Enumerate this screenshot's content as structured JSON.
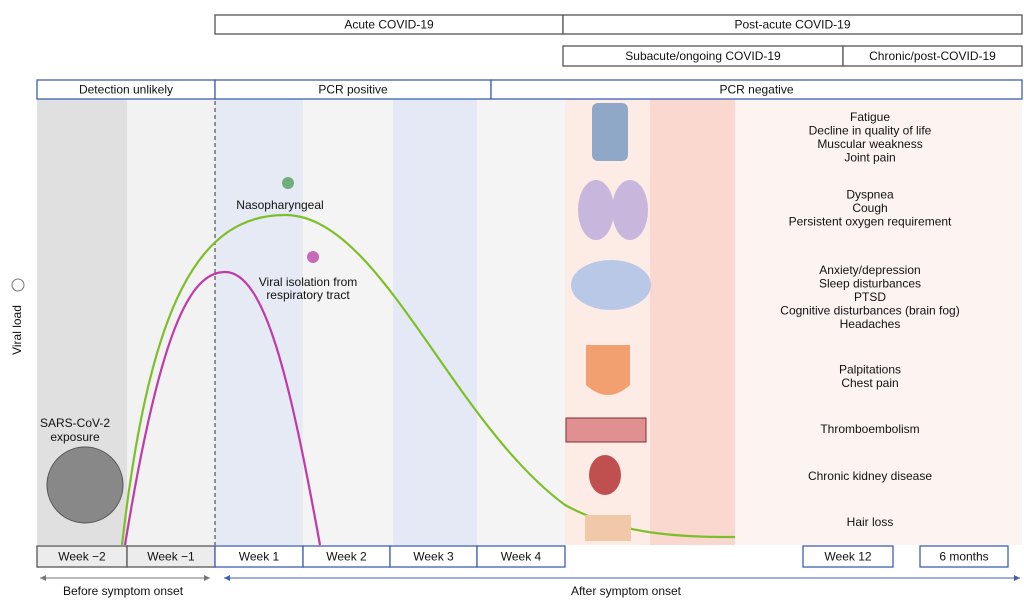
{
  "phases": {
    "acute": "Acute COVID-19",
    "post_acute": "Post-acute COVID-19",
    "subacute": "Subacute/ongoing COVID-19",
    "chronic": "Chronic/post-COVID-19"
  },
  "detection": [
    "Detection unlikely",
    "PCR positive",
    "PCR negative"
  ],
  "weeks": [
    "Week −2",
    "Week −1",
    "Week 1",
    "Week 2",
    "Week 3",
    "Week 4",
    "Week 12",
    "6 months"
  ],
  "timeline": {
    "before": "Before symptom onset",
    "after": "After symptom onset"
  },
  "y_axis_label": "Viral load",
  "curves": {
    "nasopharyngeal": "Nasopharyngeal",
    "viral_isolation": [
      "Viral isolation from",
      "respiratory tract"
    ]
  },
  "exposure": [
    "SARS-CoV-2",
    "exposure"
  ],
  "symptoms": [
    [
      "Fatigue",
      "Decline in quality of life",
      "Muscular weakness",
      "Joint pain"
    ],
    [
      "Dyspnea",
      "Cough",
      "Persistent oxygen requirement"
    ],
    [
      "Anxiety/depression",
      "Sleep disturbances",
      "PTSD",
      "Cognitive disturbances (brain fog)",
      "Headaches"
    ],
    [
      "Palpitations",
      "Chest pain"
    ],
    [
      "Thromboembolism"
    ],
    [
      "Chronic kidney disease"
    ],
    [
      "Hair loss"
    ]
  ]
}
